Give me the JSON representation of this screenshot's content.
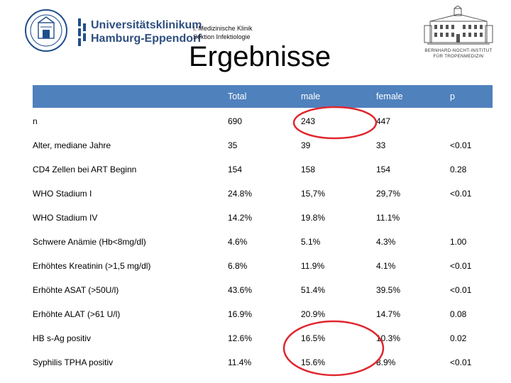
{
  "header": {
    "uke_name_line1": "Universitätsklinikum",
    "uke_name_line2": "Hamburg-Eppendorf",
    "dept_line1": "I. Medizinische Klinik",
    "dept_line2": "Sektion Infektiologie",
    "title": "Ergebnisse",
    "bni_line1": "BERNHARD-NOCHT-INSTITUT",
    "bni_line2": "FÜR TROPENMEDIZIN"
  },
  "table": {
    "columns": [
      "",
      "Total",
      "male",
      "female",
      "p"
    ],
    "rows": [
      {
        "label": "n",
        "total": "690",
        "male": "243",
        "female": "447",
        "p": ""
      },
      {
        "label": "Alter, mediane Jahre",
        "total": "35",
        "male": "39",
        "female": "33",
        "p": "<0.01"
      },
      {
        "label": "CD4 Zellen bei ART Beginn",
        "total": "154",
        "male": "158",
        "female": "154",
        "p": "0.28"
      },
      {
        "label": "WHO Stadium I",
        "total": "24.8%",
        "male": "15,7%",
        "female": "29,7%",
        "p": "<0.01"
      },
      {
        "label": "WHO Stadium IV",
        "total": "14.2%",
        "male": "19.8%",
        "female": "11.1%",
        "p": ""
      },
      {
        "label": "Schwere Anämie (Hb<8mg/dl)",
        "total": "4.6%",
        "male": "5.1%",
        "female": "4.3%",
        "p": "1.00"
      },
      {
        "label": "Erhöhtes Kreatinin (>1,5 mg/dl)",
        "total": "6.8%",
        "male": "11.9%",
        "female": "4.1%",
        "p": "<0.01"
      },
      {
        "label": "Erhöhte ASAT  (>50U/l)",
        "total": "43.6%",
        "male": "51.4%",
        "female": "39.5%",
        "p": "<0.01"
      },
      {
        "label": "Erhöhte ALAT (>61 U/l)",
        "total": "16.9%",
        "male": "20.9%",
        "female": "14.7%",
        "p": "0.08"
      },
      {
        "label": "HB s-Ag positiv",
        "total": "12.6%",
        "male": "16.5%",
        "female": "10.3%",
        "p": "0.02"
      },
      {
        "label": "Syphilis TPHA positiv",
        "total": "11.4%",
        "male": "15.6%",
        "female": "8.9%",
        "p": "<0.01"
      }
    ]
  },
  "colors": {
    "header_fill": "#4f81bd",
    "highlight_oval": "#e0262e"
  }
}
